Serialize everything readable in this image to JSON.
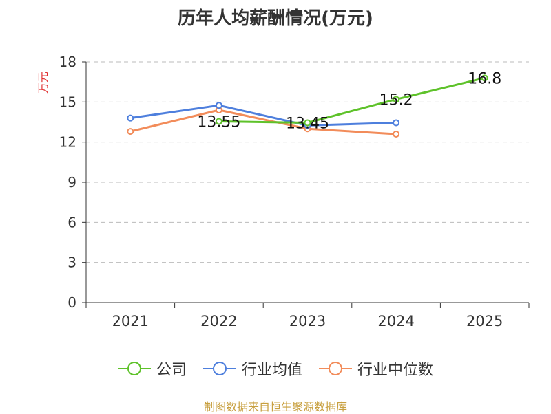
{
  "chart_data": {
    "type": "line",
    "title": "历年人均薪酬情况(万元)",
    "ylabel": "万元",
    "xlabel": "",
    "categories": [
      "2021",
      "2022",
      "2023",
      "2024",
      "2025"
    ],
    "ylim": [
      0,
      18
    ],
    "yticks": [
      0,
      3,
      6,
      9,
      12,
      15,
      18
    ],
    "grid": true,
    "legend_position": "bottom",
    "series": [
      {
        "name": "公司",
        "color": "#5ec22a",
        "values": [
          null,
          13.55,
          13.45,
          15.2,
          16.8
        ],
        "labeled": true
      },
      {
        "name": "行业均值",
        "color": "#4e7fdd",
        "values": [
          13.8,
          14.75,
          13.25,
          13.45,
          null
        ],
        "labeled": false
      },
      {
        "name": "行业中位数",
        "color": "#f28c5a",
        "values": [
          12.8,
          14.4,
          13.0,
          12.6,
          null
        ],
        "labeled": false
      }
    ]
  },
  "source": "制图数据来自恒生聚源数据库"
}
